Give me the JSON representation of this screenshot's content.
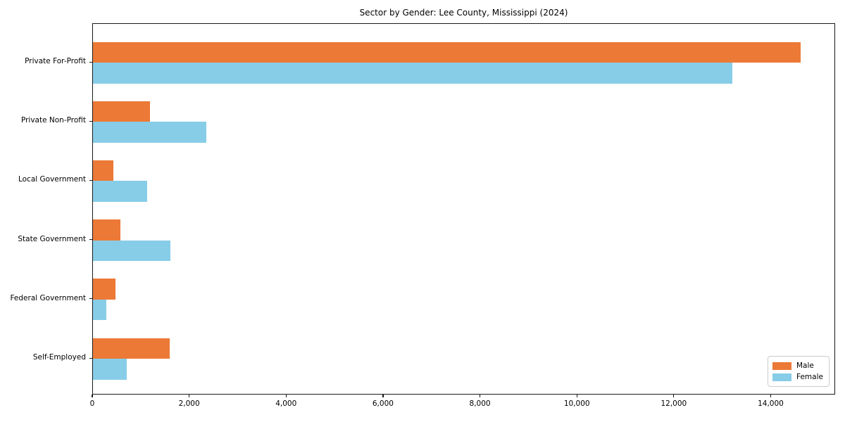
{
  "title": "Sector by Gender: Lee County, Mississippi (2024)",
  "colors": {
    "male": "#ec7936",
    "female": "#87cde8",
    "axis": "#1a1a1a",
    "legend_border": "#cccccc",
    "background": "#ffffff",
    "text": "#000000"
  },
  "legend": {
    "position": "lower right",
    "entries": [
      {
        "label": "Male",
        "color": "#ec7936"
      },
      {
        "label": "Female",
        "color": "#87cde8"
      }
    ]
  },
  "chart_data": {
    "type": "bar",
    "orientation": "horizontal",
    "title": "Sector by Gender: Lee County, Mississippi (2024)",
    "categories": [
      "Private For-Profit",
      "Private Non-Profit",
      "Local Government",
      "State Government",
      "Federal Government",
      "Self-Employed"
    ],
    "series": [
      {
        "name": "Male",
        "color": "#ec7936",
        "values": [
          14600,
          1180,
          420,
          560,
          470,
          1590
        ]
      },
      {
        "name": "Female",
        "color": "#87cde8",
        "values": [
          13200,
          2340,
          1120,
          1600,
          280,
          690
        ]
      }
    ],
    "xlabel": "",
    "ylabel": "",
    "xlim": [
      0,
      15330
    ],
    "xticks": [
      0,
      2000,
      4000,
      6000,
      8000,
      10000,
      12000,
      14000
    ],
    "xtick_labels": [
      "0",
      "2,000",
      "4,000",
      "6,000",
      "8,000",
      "10,000",
      "12,000",
      "14,000"
    ],
    "grid": false,
    "legend_position": "lower right"
  }
}
